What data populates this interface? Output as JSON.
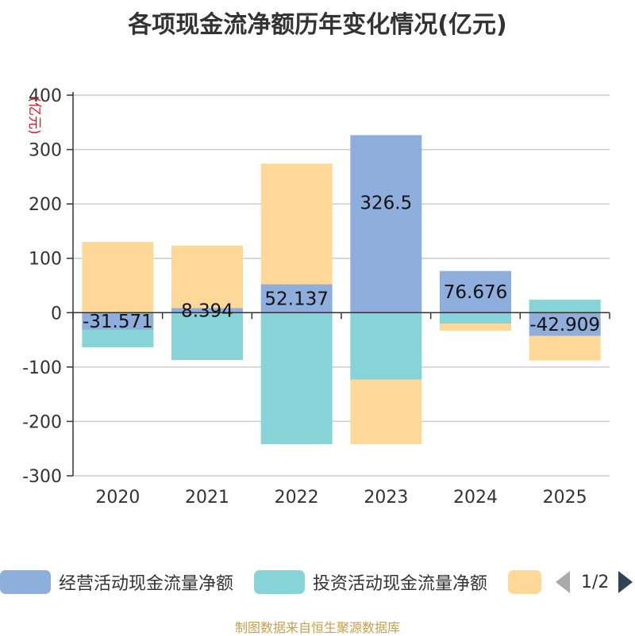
{
  "chart_data": {
    "type": "bar",
    "title": "各项现金流净额历年变化情况(亿元)",
    "ylabel": "(亿元)",
    "ylim": [
      -300,
      400
    ],
    "yticks": [
      -300,
      -200,
      -100,
      0,
      100,
      200,
      300,
      400
    ],
    "categories": [
      "2020",
      "2021",
      "2022",
      "2023",
      "2024",
      "2025"
    ],
    "stacked": true,
    "grid": true,
    "legend_position": "bottom",
    "series": [
      {
        "name": "经营活动现金流量净额",
        "color": "#8eafdb",
        "values": [
          -31.571,
          8.394,
          52.137,
          326.5,
          76.676,
          -42.909
        ],
        "labels": [
          "-31.571",
          "8.394",
          "52.137",
          "326.5",
          "76.676",
          "-42.909"
        ]
      },
      {
        "name": "投资活动现金流量净额",
        "color": "#86d4d8",
        "values": [
          -32,
          -87,
          -242,
          -123,
          -20,
          24
        ]
      },
      {
        "name": "",
        "color": "#fdd898",
        "values": [
          130,
          115,
          222,
          -119,
          -13,
          -45
        ]
      }
    ]
  },
  "legend": {
    "items": [
      {
        "label": "经营活动现金流量净额",
        "color": "#8eafdb"
      },
      {
        "label": "投资活动现金流量净额",
        "color": "#86d4d8"
      },
      {
        "label": "",
        "color": "#fdd898"
      }
    ],
    "page_indicator": "1/2"
  },
  "footer": {
    "source": "制图数据来自恒生聚源数据库"
  }
}
